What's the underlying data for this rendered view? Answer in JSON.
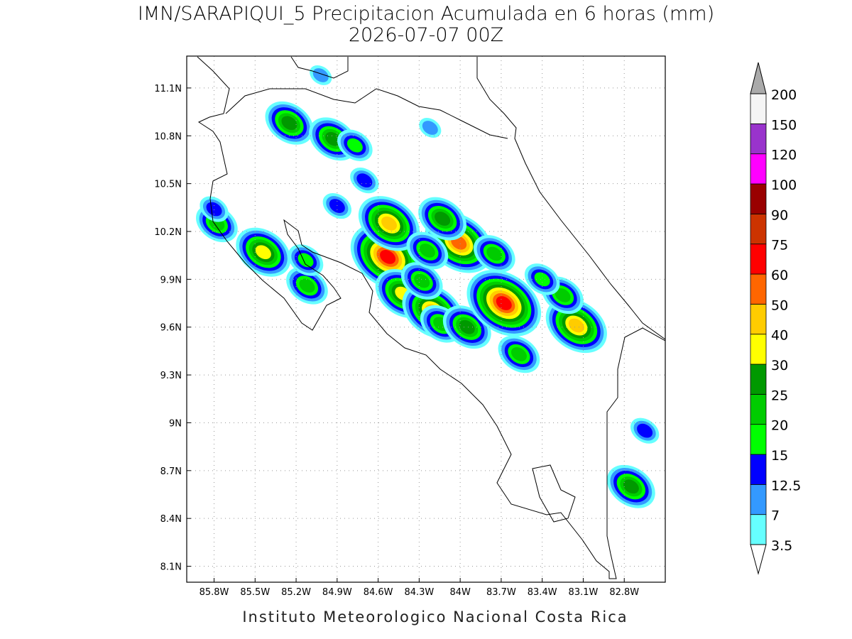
{
  "chart_data": {
    "type": "map",
    "title": "IMN/SARAPIQUI_5 Precipitacion Acumulada en 6 horas (mm)",
    "subtitle": "2026-07-07 00Z",
    "footer": "Instituto Meteorologico Nacional Costa Rica",
    "xlim": [
      -86.0,
      -82.5
    ],
    "ylim": [
      8.0,
      11.3
    ],
    "xticks": [
      {
        "value": -85.8,
        "label": "85.8W"
      },
      {
        "value": -85.5,
        "label": "85.5W"
      },
      {
        "value": -85.2,
        "label": "85.2W"
      },
      {
        "value": -84.9,
        "label": "84.9W"
      },
      {
        "value": -84.6,
        "label": "84.6W"
      },
      {
        "value": -84.3,
        "label": "84.3W"
      },
      {
        "value": -84.0,
        "label": "84W"
      },
      {
        "value": -83.7,
        "label": "83.7W"
      },
      {
        "value": -83.4,
        "label": "83.4W"
      },
      {
        "value": -83.1,
        "label": "83.1W"
      },
      {
        "value": -82.8,
        "label": "82.8W"
      }
    ],
    "yticks": [
      {
        "value": 8.1,
        "label": "8.1N"
      },
      {
        "value": 8.4,
        "label": "8.4N"
      },
      {
        "value": 8.7,
        "label": "8.7N"
      },
      {
        "value": 9.0,
        "label": "9N"
      },
      {
        "value": 9.3,
        "label": "9.3N"
      },
      {
        "value": 9.6,
        "label": "9.6N"
      },
      {
        "value": 9.9,
        "label": "9.9N"
      },
      {
        "value": 10.2,
        "label": "10.2N"
      },
      {
        "value": 10.5,
        "label": "10.5N"
      },
      {
        "value": 10.8,
        "label": "10.8N"
      },
      {
        "value": 11.1,
        "label": "11.1N"
      }
    ],
    "grid": true,
    "colorbar": {
      "levels": [
        3.5,
        7,
        12.5,
        15,
        20,
        25,
        30,
        40,
        50,
        60,
        75,
        90,
        100,
        120,
        150,
        200
      ],
      "colors": [
        "#66ffff",
        "#3399ff",
        "#0000ff",
        "#00ff00",
        "#00cc00",
        "#009900",
        "#ffff00",
        "#ffcc00",
        "#ff6600",
        "#ff0000",
        "#cc3300",
        "#990000",
        "#ff00ff",
        "#9933cc",
        "#f5f5f5"
      ],
      "over_color": "#aaaaaa",
      "under_color": "#ffffff"
    },
    "cells": [
      {
        "lon": -84.53,
        "lat": 10.04,
        "value": 60
      },
      {
        "lon": -84.01,
        "lat": 10.13,
        "value": 50
      },
      {
        "lon": -84.52,
        "lat": 10.25,
        "value": 40
      },
      {
        "lon": -85.25,
        "lat": 10.88,
        "value": 25
      },
      {
        "lon": -84.93,
        "lat": 10.78,
        "value": 25
      },
      {
        "lon": -84.77,
        "lat": 10.74,
        "value": 15
      },
      {
        "lon": -85.78,
        "lat": 10.25,
        "value": 20
      },
      {
        "lon": -85.44,
        "lat": 10.07,
        "value": 30
      },
      {
        "lon": -84.42,
        "lat": 9.81,
        "value": 30
      },
      {
        "lon": -84.2,
        "lat": 9.7,
        "value": 40
      },
      {
        "lon": -84.14,
        "lat": 9.62,
        "value": 20
      },
      {
        "lon": -83.95,
        "lat": 9.6,
        "value": 25
      },
      {
        "lon": -83.68,
        "lat": 9.75,
        "value": 60
      },
      {
        "lon": -83.57,
        "lat": 9.43,
        "value": 20
      },
      {
        "lon": -83.15,
        "lat": 9.61,
        "value": 40
      },
      {
        "lon": -83.25,
        "lat": 9.8,
        "value": 20
      },
      {
        "lon": -83.4,
        "lat": 9.9,
        "value": 15
      },
      {
        "lon": -84.28,
        "lat": 9.89,
        "value": 20
      },
      {
        "lon": -84.13,
        "lat": 10.28,
        "value": 25
      },
      {
        "lon": -84.24,
        "lat": 10.08,
        "value": 20
      },
      {
        "lon": -83.75,
        "lat": 10.06,
        "value": 20
      },
      {
        "lon": -82.75,
        "lat": 8.6,
        "value": 25
      },
      {
        "lon": -85.12,
        "lat": 9.86,
        "value": 20
      },
      {
        "lon": -85.13,
        "lat": 10.02,
        "value": 15
      },
      {
        "lon": -84.9,
        "lat": 10.36,
        "value": 12.5
      },
      {
        "lon": -85.8,
        "lat": 10.34,
        "value": 12.5
      },
      {
        "lon": -82.65,
        "lat": 8.95,
        "value": 12.5
      },
      {
        "lon": -84.7,
        "lat": 10.52,
        "value": 12.5
      },
      {
        "lon": -84.22,
        "lat": 10.85,
        "value": 7
      },
      {
        "lon": -85.02,
        "lat": 11.18,
        "value": 7
      }
    ]
  }
}
